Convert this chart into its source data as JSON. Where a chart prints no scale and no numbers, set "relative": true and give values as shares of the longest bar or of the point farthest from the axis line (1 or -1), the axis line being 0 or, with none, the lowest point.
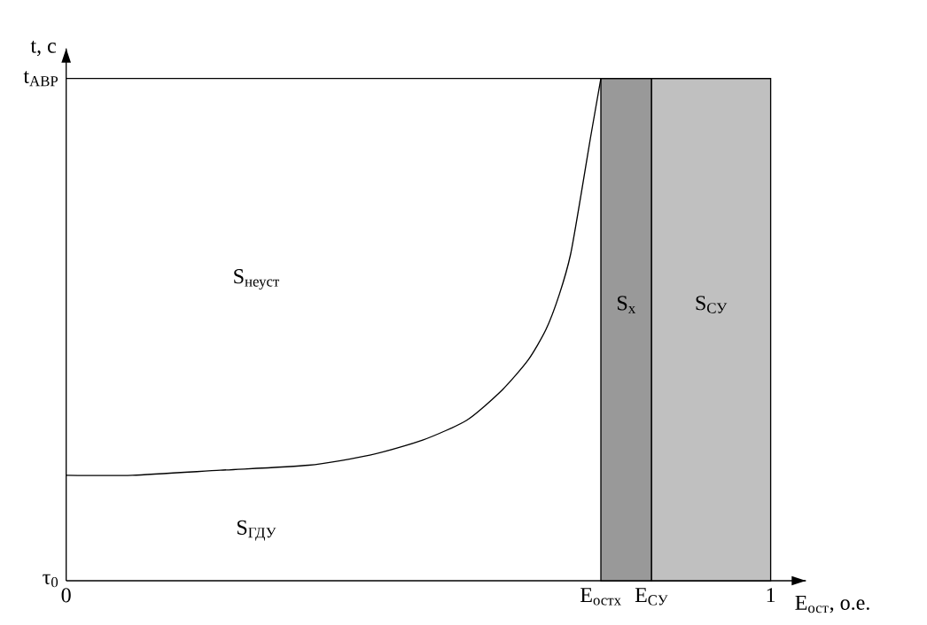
{
  "chart_data": {
    "type": "line",
    "relative": true,
    "xlabel": "E$_{ост}$, о.е.",
    "ylabel": "t, с",
    "x": [
      0,
      0.094,
      0.219,
      0.344,
      0.431,
      0.506,
      0.569,
      0.619,
      0.656,
      0.681,
      0.7,
      0.716,
      0.731,
      0.744,
      0.759
    ],
    "values": [
      0.21,
      0.21,
      0.22,
      0.23,
      0.25,
      0.28,
      0.32,
      0.38,
      0.44,
      0.5,
      0.57,
      0.65,
      0.77,
      0.88,
      1
    ],
    "color": "#000000",
    "xlim": [
      0,
      1.05
    ],
    "xticks": [
      0,
      {
        "value": 0.759,
        "label": "E$_{остх}$"
      },
      {
        "value": 0.831,
        "label": "E$_{СУ}$"
      },
      1
    ],
    "ref_lines": [
      {
        "axis": "y",
        "value": 1
      }
    ],
    "bands": [
      {
        "axis": "x",
        "from": 0.759,
        "to": 0.831,
        "label": "S$_{x}$",
        "color": "#999999"
      },
      {
        "axis": "x",
        "from": 0.831,
        "to": 1,
        "label": "S$_{СУ}$",
        "color": "#c0c0c0"
      }
    ],
    "annotations": [
      "S$_{неуст}$",
      "S$_{ГДУ}$",
      "τ$_{0}$",
      {
        "text": "t$_{АВР}$",
        "x": 0,
        "y": 1
      }
    ]
  }
}
